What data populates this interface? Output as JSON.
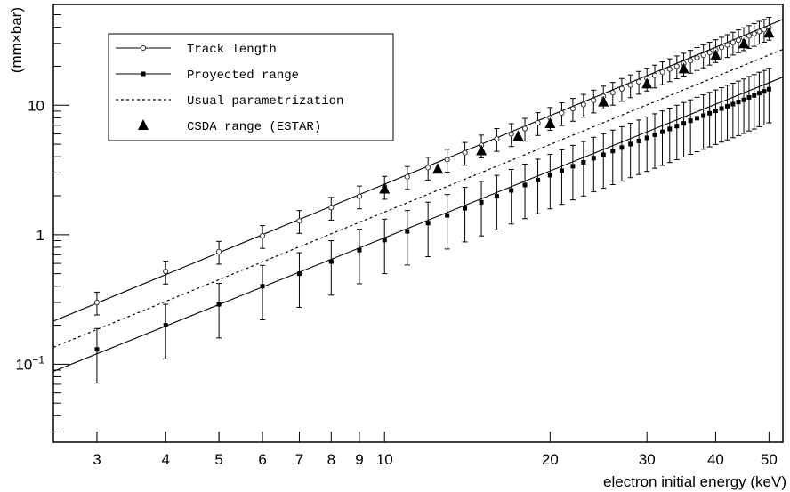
{
  "chart_data": {
    "type": "scatter",
    "xlabel": "electron initial energy (keV)",
    "ylabel": "(mm×bar)",
    "xscale": "log",
    "yscale": "log",
    "xlim": [
      2.5,
      53
    ],
    "ylim": [
      0.025,
      60
    ],
    "x_ticks": [
      3,
      4,
      5,
      6,
      7,
      8,
      9,
      10,
      20,
      30,
      40,
      50
    ],
    "x_tick_labels": [
      "3",
      "4",
      "5",
      "6",
      "7",
      "8",
      "9",
      "10",
      "20",
      "30",
      "40",
      "50"
    ],
    "y_ticks": [
      0.1,
      1,
      10
    ],
    "y_tick_labels": [
      "10^-1",
      "1",
      "10"
    ],
    "grid": false,
    "legend": {
      "position": "top-left",
      "entries": [
        {
          "label": "Track length",
          "marker": "open-circle-line"
        },
        {
          "label": "Proyected range",
          "marker": "filled-square-line"
        },
        {
          "label": "Usual parametrization",
          "marker": "dashed-line"
        },
        {
          "label": "CSDA range (ESTAR)",
          "marker": "filled-triangle"
        }
      ]
    },
    "series": [
      {
        "name": "Track length",
        "style": "open-circle",
        "x": [
          3,
          4,
          5,
          6,
          7,
          8,
          9,
          10,
          11,
          12,
          13,
          14,
          15,
          16,
          17,
          18,
          19,
          20,
          21,
          22,
          23,
          24,
          25,
          26,
          27,
          28,
          29,
          30,
          31,
          32,
          33,
          34,
          35,
          36,
          37,
          38,
          39,
          40,
          41,
          42,
          43,
          44,
          45,
          46,
          47,
          48,
          49,
          50
        ],
        "y": [
          0.3,
          0.52,
          0.74,
          0.98,
          1.28,
          1.62,
          1.98,
          2.35,
          2.8,
          3.3,
          3.8,
          4.3,
          4.9,
          5.5,
          6.0,
          6.6,
          7.3,
          8.0,
          8.7,
          9.4,
          10.1,
          10.9,
          11.7,
          12.5,
          13.4,
          14.3,
          15.2,
          16.1,
          17.0,
          18.0,
          19.0,
          20.0,
          21.0,
          22.1,
          23.2,
          24.3,
          25.5,
          26.7,
          27.9,
          29.2,
          30.5,
          31.8,
          33.0,
          34.3,
          35.6,
          37.0,
          38.3,
          39.7
        ],
        "error_frac": 0.2,
        "fit": {
          "x": [
            2.5,
            53
          ],
          "y": [
            0.215,
            46
          ]
        }
      },
      {
        "name": "Proyected range",
        "style": "filled-square",
        "x": [
          3,
          4,
          5,
          6,
          7,
          8,
          9,
          10,
          11,
          12,
          13,
          14,
          15,
          16,
          17,
          18,
          19,
          20,
          21,
          22,
          23,
          24,
          25,
          26,
          27,
          28,
          29,
          30,
          31,
          32,
          33,
          34,
          35,
          36,
          37,
          38,
          39,
          40,
          41,
          42,
          43,
          44,
          45,
          46,
          47,
          48,
          49,
          50
        ],
        "y": [
          0.13,
          0.2,
          0.29,
          0.4,
          0.5,
          0.62,
          0.76,
          0.91,
          1.06,
          1.23,
          1.41,
          1.6,
          1.78,
          1.98,
          2.2,
          2.42,
          2.64,
          2.88,
          3.12,
          3.38,
          3.62,
          3.9,
          4.15,
          4.43,
          4.71,
          5.01,
          5.3,
          5.6,
          5.92,
          6.23,
          6.56,
          6.9,
          7.24,
          7.59,
          7.94,
          8.3,
          8.67,
          9.05,
          9.43,
          9.82,
          10.2,
          10.6,
          11.0,
          11.5,
          11.9,
          12.4,
          12.8,
          13.3
        ],
        "error_frac": 0.45,
        "fit": {
          "x": [
            2.5,
            53
          ],
          "y": [
            0.088,
            16.5
          ]
        }
      },
      {
        "name": "Usual parametrization",
        "style": "dashed-line",
        "x": [
          2.5,
          53
        ],
        "y": [
          0.135,
          27
        ]
      },
      {
        "name": "CSDA range (ESTAR)",
        "style": "filled-triangle",
        "x": [
          10,
          12.5,
          15,
          17.5,
          20,
          25,
          30,
          35,
          40,
          45,
          50
        ],
        "y": [
          2.25,
          3.2,
          4.45,
          5.75,
          7.2,
          10.6,
          14.6,
          19.1,
          24.2,
          29.8,
          36
        ]
      }
    ]
  }
}
